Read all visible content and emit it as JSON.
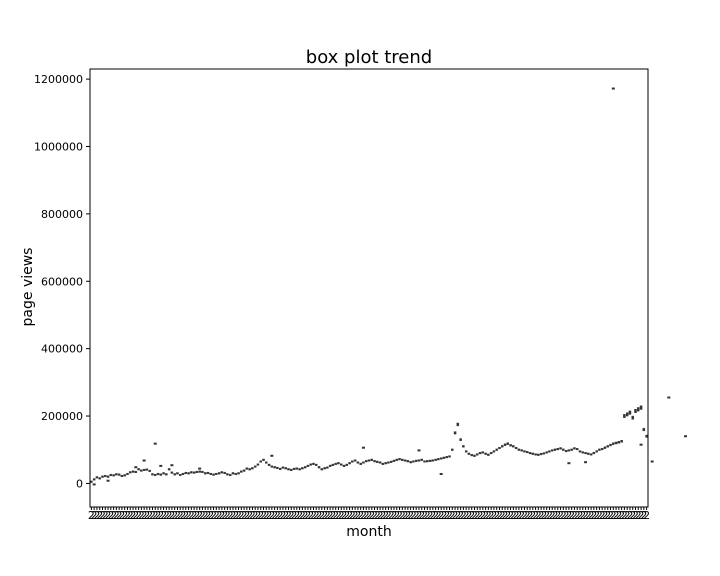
{
  "chart_data": {
    "type": "box",
    "title": "box plot trend",
    "xlabel": "month",
    "ylabel": "page views",
    "ylim": [
      -70000,
      1230000
    ],
    "yticks": [
      0,
      200000,
      400000,
      600000,
      800000,
      1000000,
      1200000
    ],
    "ytick_labels": [
      "0",
      "200000",
      "400000",
      "600000",
      "800000",
      "1000000",
      "1200000"
    ],
    "x_tick_label_prefix": "2",
    "grid": false,
    "legend": "none",
    "box_color": "#333333",
    "series": [
      {
        "medians": [
          5000,
          12000,
          18000,
          15000,
          20000,
          22000,
          20000,
          25000,
          24000,
          27000,
          26000,
          22000,
          24000,
          28000,
          33000,
          35000,
          34000,
          42000,
          38000,
          40000,
          41000,
          37000,
          27000,
          25000,
          28000,
          26000,
          30000,
          27000,
          42000,
          32000,
          27000,
          30000,
          25000,
          28000,
          31000,
          30000,
          33000,
          32000,
          34000,
          35000,
          34000,
          30000,
          31000,
          28000,
          26000,
          28000,
          30000,
          33000,
          31000,
          27000,
          25000,
          30000,
          28000,
          30000,
          35000,
          38000,
          44000,
          42000,
          45000,
          50000,
          56000,
          65000,
          70000,
          62000,
          55000,
          50000,
          48000,
          46000,
          43000,
          47000,
          45000,
          42000,
          40000,
          43000,
          44000,
          42000,
          45000,
          48000,
          52000,
          56000,
          58000,
          55000,
          48000,
          42000,
          45000,
          47000,
          52000,
          55000,
          58000,
          60000,
          56000,
          52000,
          55000,
          60000,
          65000,
          68000,
          62000,
          58000,
          62000,
          66000,
          68000,
          70000,
          66000,
          64000,
          62000,
          58000,
          60000,
          62000,
          64000,
          67000,
          70000,
          72000,
          70000,
          68000,
          66000,
          63000,
          65000,
          67000,
          68000,
          70000,
          65000,
          66000,
          67000,
          68000,
          70000,
          72000,
          74000,
          76000,
          78000,
          80000,
          100000,
          150000,
          175000,
          130000,
          110000,
          95000,
          88000,
          84000,
          82000,
          86000,
          90000,
          92000,
          88000,
          85000,
          90000,
          95000,
          100000,
          105000,
          110000,
          115000,
          118000,
          113000,
          110000,
          105000,
          100000,
          98000,
          95000,
          93000,
          90000,
          88000,
          86000,
          85000,
          87000,
          89000,
          92000,
          95000,
          98000,
          100000,
          102000,
          104000,
          100000,
          96000,
          98000,
          100000,
          104000,
          102000,
          95000,
          92000,
          90000,
          88000,
          86000,
          90000,
          95000,
          100000,
          102000,
          106000,
          110000,
          114000,
          118000,
          120000,
          122000,
          125000,
          200000,
          205000,
          210000,
          195000,
          215000,
          220000,
          225000,
          160000,
          140000
        ],
        "outliers": [
          [
            1,
            -3000
          ],
          [
            6,
            8000
          ],
          [
            16,
            48000
          ],
          [
            19,
            68000
          ],
          [
            23,
            118000
          ],
          [
            25,
            52000
          ],
          [
            29,
            54000
          ],
          [
            39,
            44000
          ],
          [
            65,
            82000
          ],
          [
            98,
            106000
          ],
          [
            118,
            98000
          ],
          [
            126,
            28000
          ],
          [
            172,
            60000
          ],
          [
            178,
            63000
          ],
          [
            188,
            1172000
          ],
          [
            198,
            115000
          ],
          [
            202,
            65000
          ],
          [
            208,
            255000
          ],
          [
            214,
            140000
          ]
        ]
      }
    ]
  }
}
